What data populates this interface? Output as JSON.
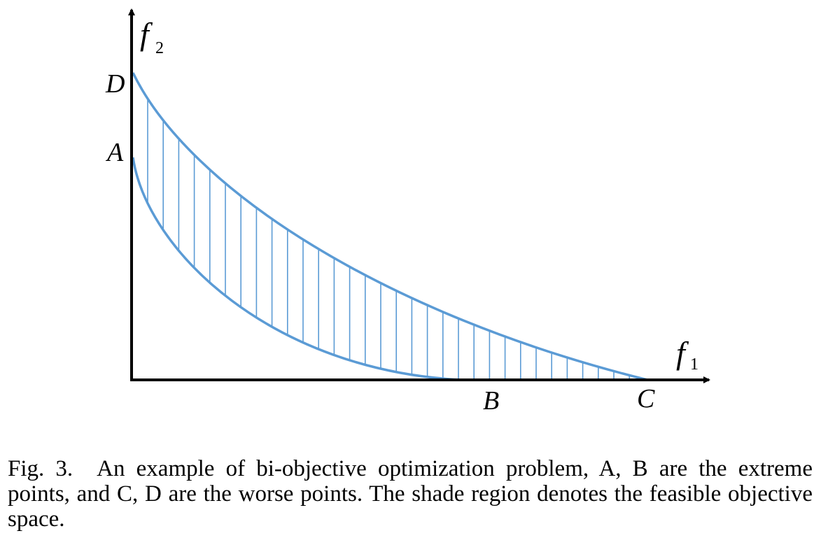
{
  "diagram": {
    "curve_color": "#5b9bd5",
    "axis_color": "#000000",
    "axes": {
      "x_label": "f",
      "x_subscript": "1",
      "y_label": "f",
      "y_subscript": "2"
    },
    "points": {
      "A": "A",
      "B": "B",
      "C": "C",
      "D": "D"
    }
  },
  "caption": {
    "figure_number": "Fig. 3.",
    "line": "An example of bi-objective optimization problem, A, B are the extreme points, and C, D are the worse points. The shade region denotes the feasible objective space."
  }
}
